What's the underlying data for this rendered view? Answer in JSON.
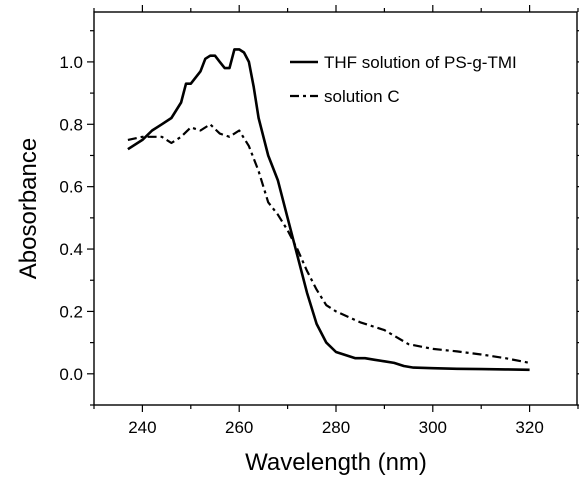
{
  "chart_data": {
    "type": "line",
    "xlabel": "Wavelength (nm)",
    "ylabel": "Abosorbance",
    "xlim": [
      230,
      330
    ],
    "ylim": [
      -0.1,
      1.16
    ],
    "x_ticks": [
      240,
      260,
      280,
      300,
      320
    ],
    "x_tick_labels": [
      "240",
      "260",
      "280",
      "300",
      "320"
    ],
    "y_ticks": [
      0.0,
      0.2,
      0.4,
      0.6,
      0.8,
      1.0
    ],
    "y_tick_labels": [
      "0.0",
      "0.2",
      "0.4",
      "0.6",
      "0.8",
      "1.0"
    ],
    "grid": false,
    "legend_position": "top-right",
    "series": [
      {
        "name": "THF solution of PS-g-TMI",
        "style": "solid",
        "color": "#000000",
        "x": [
          237,
          240,
          242,
          244,
          246,
          248,
          249,
          250,
          252,
          253,
          254,
          255,
          256,
          257,
          258,
          259,
          260,
          261,
          262,
          263,
          264,
          266,
          268,
          270,
          272,
          274,
          276,
          278,
          280,
          282,
          284,
          286,
          288,
          290,
          292,
          294,
          296,
          300,
          305,
          310,
          315,
          320
        ],
        "y": [
          0.72,
          0.75,
          0.78,
          0.8,
          0.82,
          0.87,
          0.93,
          0.93,
          0.97,
          1.01,
          1.02,
          1.02,
          1.0,
          0.98,
          0.98,
          1.04,
          1.04,
          1.03,
          1.0,
          0.92,
          0.82,
          0.7,
          0.62,
          0.5,
          0.38,
          0.26,
          0.16,
          0.1,
          0.07,
          0.06,
          0.05,
          0.05,
          0.045,
          0.04,
          0.035,
          0.025,
          0.02,
          0.018,
          0.016,
          0.015,
          0.014,
          0.013
        ]
      },
      {
        "name": "solution C",
        "style": "dashdot",
        "color": "#000000",
        "x": [
          237,
          240,
          242,
          244,
          246,
          248,
          250,
          252,
          254,
          256,
          258,
          260,
          262,
          264,
          266,
          268,
          270,
          272,
          274,
          276,
          278,
          280,
          285,
          290,
          295,
          300,
          305,
          310,
          315,
          320
        ],
        "y": [
          0.75,
          0.76,
          0.76,
          0.76,
          0.74,
          0.76,
          0.79,
          0.78,
          0.8,
          0.77,
          0.76,
          0.78,
          0.73,
          0.65,
          0.55,
          0.51,
          0.46,
          0.4,
          0.33,
          0.27,
          0.22,
          0.2,
          0.165,
          0.14,
          0.095,
          0.08,
          0.072,
          0.062,
          0.05,
          0.035
        ]
      }
    ]
  }
}
